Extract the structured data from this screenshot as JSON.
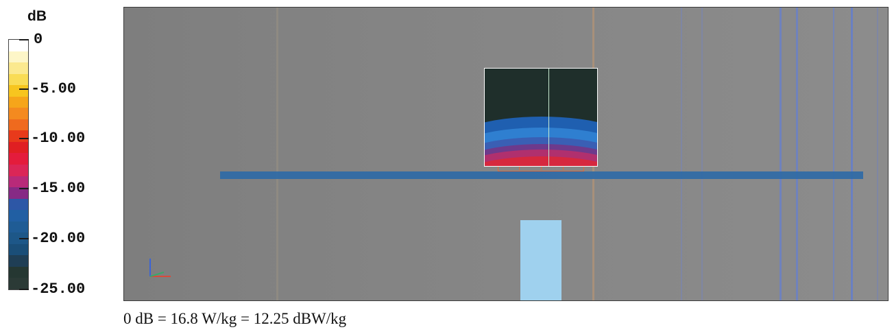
{
  "legend": {
    "unit": "dB",
    "tick_labels": [
      "0",
      "-5.00",
      "-10.00",
      "-15.00",
      "-20.00",
      "-25.00"
    ],
    "scale_max_db": 0,
    "scale_min_db": -25,
    "color_steps": [
      "#ffffff",
      "#fdf6c8",
      "#fbe98f",
      "#f9dc55",
      "#f7c51f",
      "#f6a51a",
      "#f48a1f",
      "#ef6a1e",
      "#e83a1b",
      "#e01f22",
      "#e41c3c",
      "#db2657",
      "#b82a79",
      "#862a85",
      "#2d57a6",
      "#215fa3",
      "#1f5c95",
      "#1d5788",
      "#1a4e78",
      "#1f3e55",
      "#253732",
      "#2b3a36"
    ]
  },
  "viewport": {
    "background_color": "#848484",
    "ground_plane_color": "#2f6aa6",
    "feed_block_color": "#9fd1ee",
    "antenna_color": "#e06a3a",
    "probe_bands": [
      "#1f2f2b",
      "#1f5fb0",
      "#2f7fd0",
      "#6d3a8c",
      "#b0306e",
      "#d6283e"
    ]
  },
  "footnote": {
    "text": "0 dB = 16.8 W/kg = 12.25 dBW/kg"
  }
}
